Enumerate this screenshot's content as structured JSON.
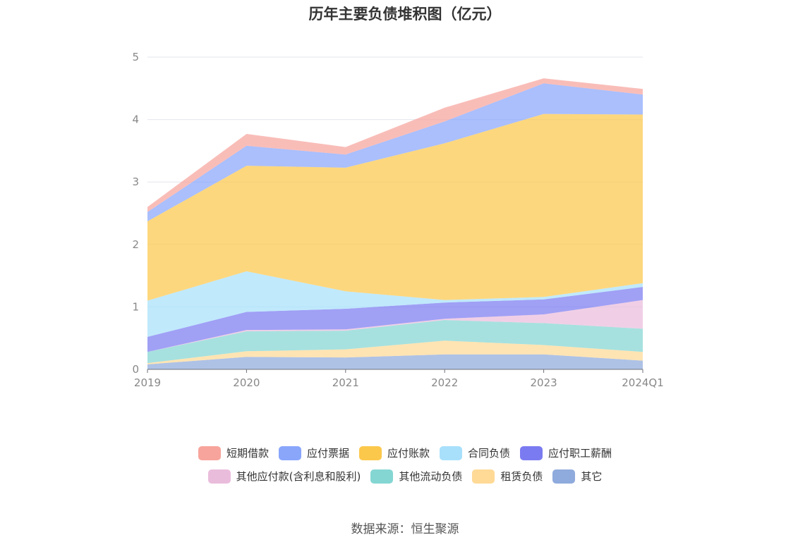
{
  "chart_data": {
    "type": "area",
    "stacked": true,
    "title": "历年主要负债堆积图（亿元）",
    "categories": [
      "2019",
      "2020",
      "2021",
      "2022",
      "2023",
      "2024Q1"
    ],
    "ylim": [
      0,
      5
    ],
    "yticks": [
      0,
      1,
      2,
      3,
      4,
      5
    ],
    "grid": true,
    "legend_position": "bottom",
    "series": [
      {
        "name": "其它",
        "color": "#8faadc",
        "values": [
          0.08,
          0.2,
          0.19,
          0.24,
          0.24,
          0.14
        ]
      },
      {
        "name": "租赁负债",
        "color": "#ffd996",
        "values": [
          0.02,
          0.09,
          0.13,
          0.22,
          0.15,
          0.14
        ]
      },
      {
        "name": "其他流动负债",
        "color": "#84d6d3",
        "values": [
          0.18,
          0.32,
          0.3,
          0.33,
          0.35,
          0.37
        ]
      },
      {
        "name": "其他应付款(含利息和股利)",
        "color": "#eabcdc",
        "values": [
          0.0,
          0.02,
          0.02,
          0.02,
          0.14,
          0.46
        ]
      },
      {
        "name": "应付职工薪酬",
        "color": "#7b7bf1",
        "values": [
          0.24,
          0.29,
          0.33,
          0.26,
          0.24,
          0.21
        ]
      },
      {
        "name": "合同负债",
        "color": "#a8e0fb",
        "values": [
          0.58,
          0.65,
          0.28,
          0.04,
          0.04,
          0.06
        ]
      },
      {
        "name": "应付账款",
        "color": "#fcc84c",
        "values": [
          1.27,
          1.69,
          1.98,
          2.51,
          2.93,
          2.7
        ]
      },
      {
        "name": "应付票据",
        "color": "#89a6fb",
        "values": [
          0.15,
          0.32,
          0.21,
          0.35,
          0.49,
          0.32
        ]
      },
      {
        "name": "短期借款",
        "color": "#f7a49c",
        "values": [
          0.08,
          0.19,
          0.12,
          0.22,
          0.08,
          0.09
        ]
      }
    ]
  },
  "legend_rows": [
    [
      "短期借款",
      "应付票据",
      "应付账款",
      "合同负债",
      "应付职工薪酬"
    ],
    [
      "其他应付款(含利息和股利)",
      "其他流动负债",
      "租赁负债",
      "其它"
    ]
  ],
  "source": "数据来源：恒生聚源"
}
